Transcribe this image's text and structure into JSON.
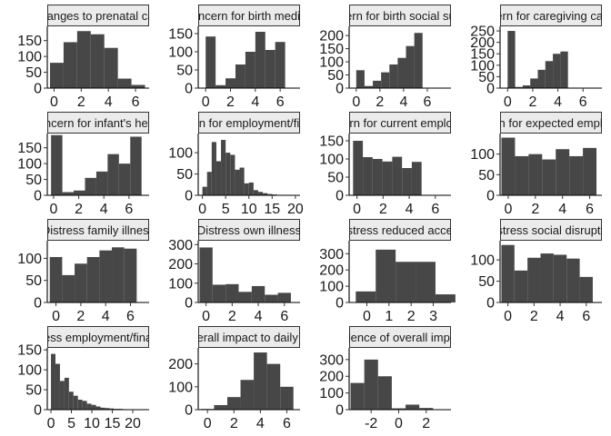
{
  "chart_data": [
    {
      "type": "bar",
      "title": "Changes to prenatal care",
      "xlim": [
        -0.5,
        7
      ],
      "ylim": [
        0,
        195
      ],
      "xticks": [
        0,
        2,
        4,
        6
      ],
      "yticks": [
        0,
        50,
        100,
        150
      ],
      "bins": [
        {
          "x": -0.3,
          "w": 1,
          "y": 80
        },
        {
          "x": 0.7,
          "w": 1,
          "y": 145
        },
        {
          "x": 1.7,
          "w": 1,
          "y": 180
        },
        {
          "x": 2.7,
          "w": 1,
          "y": 170
        },
        {
          "x": 3.7,
          "w": 1,
          "y": 127
        },
        {
          "x": 4.7,
          "w": 1,
          "y": 30
        },
        {
          "x": 5.7,
          "w": 1,
          "y": 10
        }
      ]
    },
    {
      "type": "bar",
      "title": "Concern for birth medical",
      "xlim": [
        -0.6,
        7.6
      ],
      "ylim": [
        0,
        170
      ],
      "xticks": [
        0,
        2,
        4,
        6
      ],
      "yticks": [
        0,
        50,
        100,
        150
      ],
      "bins": [
        {
          "x": 0,
          "w": 0.8,
          "y": 142
        },
        {
          "x": 0.8,
          "w": 0.8,
          "y": 8
        },
        {
          "x": 1.6,
          "w": 0.8,
          "y": 27
        },
        {
          "x": 2.4,
          "w": 0.8,
          "y": 65
        },
        {
          "x": 3.2,
          "w": 0.8,
          "y": 100
        },
        {
          "x": 4.0,
          "w": 0.8,
          "y": 155
        },
        {
          "x": 4.8,
          "w": 0.8,
          "y": 105
        },
        {
          "x": 5.6,
          "w": 0.8,
          "y": 127
        }
      ]
    },
    {
      "type": "bar",
      "title": "Concern for birth social support",
      "xlim": [
        -0.6,
        8.0
      ],
      "ylim": [
        0,
        235
      ],
      "xticks": [
        0,
        2,
        4,
        6
      ],
      "yticks": [
        0,
        50,
        100,
        150,
        200
      ],
      "bins": [
        {
          "x": 0,
          "w": 0.7,
          "y": 68
        },
        {
          "x": 0.7,
          "w": 0.7,
          "y": 8
        },
        {
          "x": 1.4,
          "w": 0.7,
          "y": 28
        },
        {
          "x": 2.1,
          "w": 0.7,
          "y": 60
        },
        {
          "x": 2.8,
          "w": 0.7,
          "y": 90
        },
        {
          "x": 3.5,
          "w": 0.7,
          "y": 115
        },
        {
          "x": 4.2,
          "w": 0.7,
          "y": 160
        },
        {
          "x": 4.9,
          "w": 0.7,
          "y": 210
        }
      ]
    },
    {
      "type": "bar",
      "title": "Concern for caregiving capacity",
      "xlim": [
        -0.6,
        7.5
      ],
      "ylim": [
        0,
        270
      ],
      "xticks": [
        0,
        2,
        4,
        6
      ],
      "yticks": [
        0,
        50,
        100,
        150,
        200,
        250
      ],
      "bins": [
        {
          "x": 0,
          "w": 0.6,
          "y": 250
        },
        {
          "x": 0.6,
          "w": 0.6,
          "y": 5
        },
        {
          "x": 1.2,
          "w": 0.6,
          "y": 12
        },
        {
          "x": 1.8,
          "w": 0.6,
          "y": 42
        },
        {
          "x": 2.4,
          "w": 0.6,
          "y": 80
        },
        {
          "x": 3.0,
          "w": 0.6,
          "y": 118
        },
        {
          "x": 3.6,
          "w": 0.6,
          "y": 150
        },
        {
          "x": 4.2,
          "w": 0.6,
          "y": 160
        }
      ]
    },
    {
      "type": "bar",
      "title": "Concern for infant's health",
      "xlim": [
        -0.5,
        7.6
      ],
      "ylim": [
        0,
        195
      ],
      "xticks": [
        0,
        2,
        4,
        6
      ],
      "yticks": [
        0,
        50,
        100,
        150
      ],
      "bins": [
        {
          "x": -0.2,
          "w": 0.9,
          "y": 190
        },
        {
          "x": 0.7,
          "w": 0.9,
          "y": 10
        },
        {
          "x": 1.6,
          "w": 0.9,
          "y": 15
        },
        {
          "x": 2.5,
          "w": 0.9,
          "y": 55
        },
        {
          "x": 3.4,
          "w": 0.9,
          "y": 75
        },
        {
          "x": 4.3,
          "w": 0.9,
          "y": 130
        },
        {
          "x": 5.2,
          "w": 0.9,
          "y": 100
        },
        {
          "x": 6.1,
          "w": 0.9,
          "y": 185
        }
      ]
    },
    {
      "type": "bar",
      "title": "Concern for employment/finances",
      "xlim": [
        -0.9,
        21
      ],
      "ylim": [
        0,
        145
      ],
      "xticks": [
        0,
        5,
        10,
        15,
        20
      ],
      "yticks": [
        0,
        50,
        100
      ],
      "bins": [
        {
          "x": 0,
          "w": 1,
          "y": 20
        },
        {
          "x": 1,
          "w": 1,
          "y": 55
        },
        {
          "x": 2,
          "w": 1,
          "y": 125
        },
        {
          "x": 3,
          "w": 1,
          "y": 80
        },
        {
          "x": 4,
          "w": 1,
          "y": 130
        },
        {
          "x": 5,
          "w": 1,
          "y": 100
        },
        {
          "x": 6,
          "w": 1,
          "y": 95
        },
        {
          "x": 7,
          "w": 1,
          "y": 60
        },
        {
          "x": 8,
          "w": 1,
          "y": 65
        },
        {
          "x": 9,
          "w": 1,
          "y": 28
        },
        {
          "x": 10,
          "w": 1,
          "y": 30
        },
        {
          "x": 11,
          "w": 1,
          "y": 12
        },
        {
          "x": 12,
          "w": 1,
          "y": 8
        },
        {
          "x": 13,
          "w": 1,
          "y": 5
        },
        {
          "x": 14,
          "w": 1,
          "y": 3
        },
        {
          "x": 15,
          "w": 1,
          "y": 2
        },
        {
          "x": 16,
          "w": 1,
          "y": 1
        },
        {
          "x": 17,
          "w": 1,
          "y": 1
        },
        {
          "x": 18,
          "w": 1,
          "y": 1
        },
        {
          "x": 19,
          "w": 1,
          "y": 1
        }
      ]
    },
    {
      "type": "bar",
      "title": "Concern for current employment",
      "xlim": [
        -0.6,
        7.2
      ],
      "ylim": [
        0,
        170
      ],
      "xticks": [
        0,
        2,
        4,
        6
      ],
      "yticks": [
        0,
        50,
        100,
        150
      ],
      "bins": [
        {
          "x": -0.3,
          "w": 0.75,
          "y": 150
        },
        {
          "x": 0.45,
          "w": 0.75,
          "y": 105
        },
        {
          "x": 1.2,
          "w": 0.75,
          "y": 100
        },
        {
          "x": 1.95,
          "w": 0.75,
          "y": 93
        },
        {
          "x": 2.7,
          "w": 0.75,
          "y": 106
        },
        {
          "x": 3.45,
          "w": 0.75,
          "y": 75
        },
        {
          "x": 4.2,
          "w": 0.75,
          "y": 92
        }
      ]
    },
    {
      "type": "bar",
      "title": "Concern for expected employment",
      "xlim": [
        -0.6,
        6.9
      ],
      "ylim": [
        0,
        150
      ],
      "xticks": [
        0,
        2,
        4,
        6
      ],
      "yticks": [
        0,
        50,
        100
      ],
      "bins": [
        {
          "x": -0.5,
          "w": 1,
          "y": 140
        },
        {
          "x": 0.5,
          "w": 1,
          "y": 95
        },
        {
          "x": 1.5,
          "w": 1,
          "y": 100
        },
        {
          "x": 2.5,
          "w": 1,
          "y": 87
        },
        {
          "x": 3.5,
          "w": 1,
          "y": 112
        },
        {
          "x": 4.5,
          "w": 1,
          "y": 95
        },
        {
          "x": 5.5,
          "w": 1,
          "y": 115
        }
      ]
    },
    {
      "type": "bar",
      "title": "Distress family illness",
      "xlim": [
        -0.7,
        7.5
      ],
      "ylim": [
        0,
        140
      ],
      "xticks": [
        0,
        2,
        4,
        6
      ],
      "yticks": [
        0,
        50,
        100
      ],
      "bins": [
        {
          "x": -0.5,
          "w": 1,
          "y": 103
        },
        {
          "x": 0.5,
          "w": 1,
          "y": 62
        },
        {
          "x": 1.5,
          "w": 1,
          "y": 88
        },
        {
          "x": 2.5,
          "w": 1,
          "y": 103
        },
        {
          "x": 3.5,
          "w": 1,
          "y": 118
        },
        {
          "x": 4.5,
          "w": 1,
          "y": 125
        },
        {
          "x": 5.5,
          "w": 1,
          "y": 122
        }
      ]
    },
    {
      "type": "bar",
      "title": "Distress own illness",
      "xlim": [
        -0.6,
        7.2
      ],
      "ylim": [
        0,
        320
      ],
      "xticks": [
        0,
        2,
        4,
        6
      ],
      "yticks": [
        0,
        100,
        200,
        300
      ],
      "bins": [
        {
          "x": -0.5,
          "w": 1,
          "y": 285
        },
        {
          "x": 0.5,
          "w": 1,
          "y": 92
        },
        {
          "x": 1.5,
          "w": 1,
          "y": 95
        },
        {
          "x": 2.5,
          "w": 1,
          "y": 55
        },
        {
          "x": 3.5,
          "w": 1,
          "y": 85
        },
        {
          "x": 4.5,
          "w": 1,
          "y": 40
        },
        {
          "x": 5.5,
          "w": 1,
          "y": 50
        }
      ]
    },
    {
      "type": "bar",
      "title": "Distress reduced access",
      "xlim": [
        -0.8,
        3.8
      ],
      "ylim": [
        0,
        380
      ],
      "xticks": [
        0,
        1,
        2,
        3
      ],
      "yticks": [
        0,
        100,
        200,
        300
      ],
      "bins": [
        {
          "x": -0.5,
          "w": 0.9,
          "y": 68
        },
        {
          "x": 0.4,
          "w": 0.9,
          "y": 325
        },
        {
          "x": 1.3,
          "w": 0.9,
          "y": 250
        },
        {
          "x": 2.2,
          "w": 0.9,
          "y": 250
        },
        {
          "x": 3.1,
          "w": 0.9,
          "y": 50
        }
      ]
    },
    {
      "type": "bar",
      "title": "Distress social disruption",
      "xlim": [
        -0.6,
        7.2
      ],
      "ylim": [
        0,
        145
      ],
      "xticks": [
        0,
        2,
        4,
        6
      ],
      "yticks": [
        0,
        50,
        100
      ],
      "bins": [
        {
          "x": -0.5,
          "w": 1,
          "y": 135
        },
        {
          "x": 0.5,
          "w": 1,
          "y": 75
        },
        {
          "x": 1.5,
          "w": 1,
          "y": 105
        },
        {
          "x": 2.5,
          "w": 1,
          "y": 115
        },
        {
          "x": 3.5,
          "w": 1,
          "y": 112
        },
        {
          "x": 4.5,
          "w": 1,
          "y": 103
        },
        {
          "x": 5.5,
          "w": 1,
          "y": 60
        }
      ]
    },
    {
      "type": "bar",
      "title": "Distress employment/finances",
      "xlim": [
        -0.9,
        24
      ],
      "ylim": [
        0,
        155
      ],
      "xticks": [
        0,
        5,
        10,
        15,
        20
      ],
      "yticks": [
        0,
        50,
        100,
        150
      ],
      "bins": [
        {
          "x": 0,
          "w": 1.1,
          "y": 140
        },
        {
          "x": 1.1,
          "w": 1.1,
          "y": 115
        },
        {
          "x": 2.2,
          "w": 1.1,
          "y": 72
        },
        {
          "x": 3.3,
          "w": 1.1,
          "y": 80
        },
        {
          "x": 4.4,
          "w": 1.1,
          "y": 45
        },
        {
          "x": 5.5,
          "w": 1.1,
          "y": 35
        },
        {
          "x": 6.6,
          "w": 1.1,
          "y": 25
        },
        {
          "x": 7.7,
          "w": 1.1,
          "y": 22
        },
        {
          "x": 8.8,
          "w": 1.1,
          "y": 15
        },
        {
          "x": 9.9,
          "w": 1.1,
          "y": 12
        },
        {
          "x": 11,
          "w": 1.1,
          "y": 8
        },
        {
          "x": 12.1,
          "w": 1.1,
          "y": 5
        },
        {
          "x": 13.2,
          "w": 1.1,
          "y": 4
        },
        {
          "x": 14.3,
          "w": 1.1,
          "y": 3
        },
        {
          "x": 15.4,
          "w": 1.1,
          "y": 2
        },
        {
          "x": 16.5,
          "w": 1.1,
          "y": 2
        },
        {
          "x": 17.6,
          "w": 1.1,
          "y": 1
        },
        {
          "x": 18.7,
          "w": 1.1,
          "y": 1
        },
        {
          "x": 19.8,
          "w": 1.1,
          "y": 1
        },
        {
          "x": 20.9,
          "w": 1.1,
          "y": 1
        }
      ]
    },
    {
      "type": "bar",
      "title": "Overall impact to daily life",
      "xlim": [
        -0.7,
        7.0
      ],
      "ylim": [
        0,
        270
      ],
      "xticks": [
        0,
        2,
        4,
        6
      ],
      "yticks": [
        0,
        100,
        200
      ],
      "bins": [
        {
          "x": -0.5,
          "w": 1,
          "y": 3
        },
        {
          "x": 0.5,
          "w": 1,
          "y": 20
        },
        {
          "x": 1.5,
          "w": 1,
          "y": 55
        },
        {
          "x": 2.5,
          "w": 1,
          "y": 130
        },
        {
          "x": 3.5,
          "w": 1,
          "y": 250
        },
        {
          "x": 4.5,
          "w": 1,
          "y": 200
        },
        {
          "x": 5.5,
          "w": 1,
          "y": 100
        }
      ]
    },
    {
      "type": "bar",
      "title": "Valence of overall impact",
      "xlim": [
        -3.6,
        3.8
      ],
      "ylim": [
        0,
        370
      ],
      "xticks": [
        -2,
        0,
        2
      ],
      "yticks": [
        0,
        100,
        200,
        300
      ],
      "bins": [
        {
          "x": -3.5,
          "w": 1,
          "y": 160
        },
        {
          "x": -2.5,
          "w": 1,
          "y": 300
        },
        {
          "x": -1.5,
          "w": 1,
          "y": 200
        },
        {
          "x": -0.5,
          "w": 1,
          "y": 8
        },
        {
          "x": 0.5,
          "w": 1,
          "y": 30
        },
        {
          "x": 1.5,
          "w": 1,
          "y": 10
        },
        {
          "x": 2.5,
          "w": 1,
          "y": 1
        }
      ]
    }
  ]
}
